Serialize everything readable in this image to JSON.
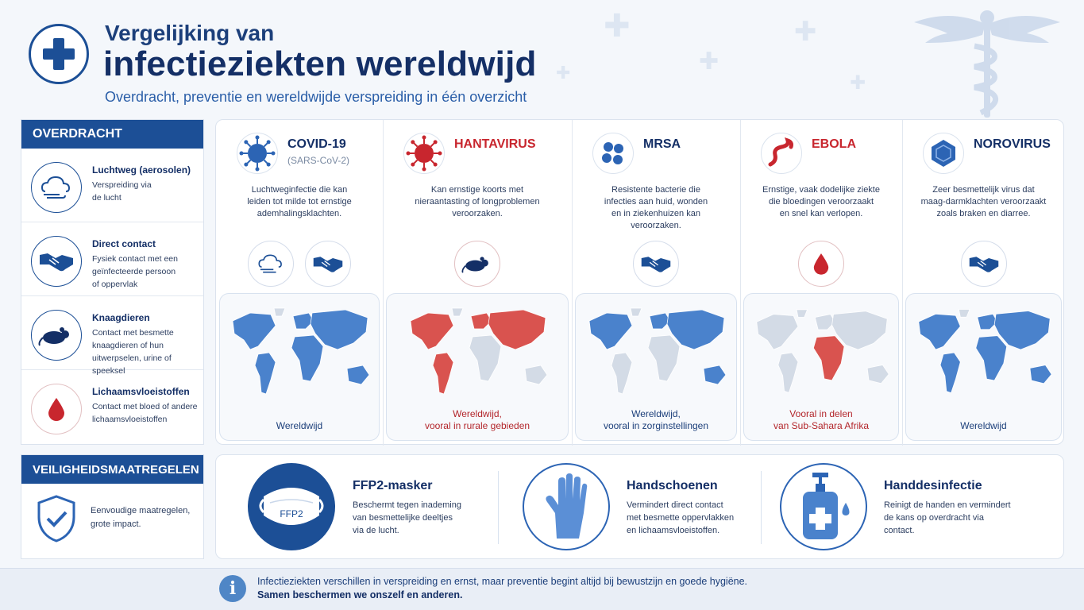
{
  "header": {
    "title_line1": "Vergelijking van",
    "title_line2": "infectieziekten wereldwijd",
    "subtitle": "Overdracht, preventie en wereldwijde verspreiding  in één overzicht",
    "logo_icon": "medical-cross-icon",
    "decor_icon": "caduceus-icon"
  },
  "transmission": {
    "heading": "OVERDRACHT",
    "items": [
      {
        "title": "Luchtweg (aerosolen)",
        "desc_lines": [
          "Verspreiding via",
          "de lucht"
        ],
        "icon": "airborne-icon"
      },
      {
        "title": "Direct contact",
        "desc_lines": [
          "Fysiek contact met een",
          "geïnfecteerde persoon",
          "of oppervlak"
        ],
        "icon": "handshake-icon"
      },
      {
        "title": "Knaagdieren",
        "desc_lines": [
          "Contact met besmette",
          "knaagdieren of hun",
          "uitwerpselen, urine of speeksel"
        ],
        "icon": "rodent-icon"
      },
      {
        "title": "Lichaamsvloeistoffen",
        "desc_lines": [
          "Contact met bloed of andere",
          "lichaamsvloeistoffen"
        ],
        "icon": "blood-drop-icon"
      }
    ]
  },
  "safety": {
    "heading": "VEILIGHEIDSMAATREGELEN",
    "desc_lines": [
      "Eenvoudige maatregelen,",
      "grote impact."
    ],
    "icon": "shield-check-icon"
  },
  "diseases": [
    {
      "name": "COVID-19",
      "sub": "(SARS-CoV-2)",
      "desc_lines": [
        "Luchtweginfectie die kan",
        "leiden tot milde tot ernstige",
        "ademhalingsklachten."
      ],
      "transmission": [
        "airborne",
        "contact"
      ],
      "caption_lines": [
        "Wereldwijd"
      ],
      "color": "#2c64b4",
      "icon": "coronavirus-icon"
    },
    {
      "name": "HANTAVIRUS",
      "sub": "",
      "desc_lines": [
        "Kan ernstige koorts met",
        "nieraantasting of longproblemen",
        "veroorzaken."
      ],
      "transmission": [
        "rodent"
      ],
      "caption_lines": [
        "Wereldwijd,",
        "vooral in rurale gebieden"
      ],
      "color": "#c8262e",
      "icon": "virus-red-icon"
    },
    {
      "name": "MRSA",
      "sub": "",
      "desc_lines": [
        "Resistente bacterie die",
        "infecties aan huid, wonden",
        "en in ziekenhuizen kan",
        "veroorzaken."
      ],
      "transmission": [
        "contact"
      ],
      "caption_lines": [
        "Wereldwijd,",
        "vooral in zorginstellingen"
      ],
      "color": "#2c64b4",
      "icon": "bacteria-icon"
    },
    {
      "name": "EBOLA",
      "sub": "",
      "desc_lines": [
        "Ernstige, vaak dodelijke ziekte",
        "die bloedingen veroorzaakt",
        "en snel kan verlopen."
      ],
      "transmission": [
        "fluids"
      ],
      "caption_lines": [
        "Vooral in delen",
        "van Sub-Sahara Afrika"
      ],
      "color": "#c8262e",
      "icon": "filovirus-icon"
    },
    {
      "name": "NOROVIRUS",
      "sub": "",
      "desc_lines": [
        "Zeer besmettelijk virus dat",
        "maag-darmklachten veroorzaakt",
        "zoals braken en diarree."
      ],
      "transmission": [
        "contact"
      ],
      "caption_lines": [
        "Wereldwijd"
      ],
      "color": "#2c64b4",
      "icon": "norovirus-icon"
    }
  ],
  "prevention": [
    {
      "title": "FFP2-masker",
      "desc_lines": [
        "Beschermt tegen inademing",
        "van besmettelijke deeltjes",
        "via de lucht."
      ],
      "icon": "ffp2-mask-icon",
      "label": "FFP2"
    },
    {
      "title": "Handschoenen",
      "desc_lines": [
        "Vermindert direct contact",
        "met besmette oppervlakken",
        "en lichaamsvloeistoffen."
      ],
      "icon": "glove-icon"
    },
    {
      "title": "Handdesinfectie",
      "desc_lines": [
        "Reinigt de handen en vermindert",
        "de kans op overdracht via",
        "contact."
      ],
      "icon": "sanitizer-icon"
    }
  ],
  "footer": {
    "line1": "Infectieziekten verschillen in verspreiding en ernst, maar preventie begint altijd bij bewustzijn en goede hygiëne.",
    "line2": "Samen beschermen we onszelf en anderen.",
    "icon": "info-icon"
  },
  "colors": {
    "primary": "#1c4f96",
    "accent_red": "#c8262e",
    "map_blue": "#4a82cc",
    "map_red": "#d9534f",
    "map_grey": "#d3dbe6"
  }
}
